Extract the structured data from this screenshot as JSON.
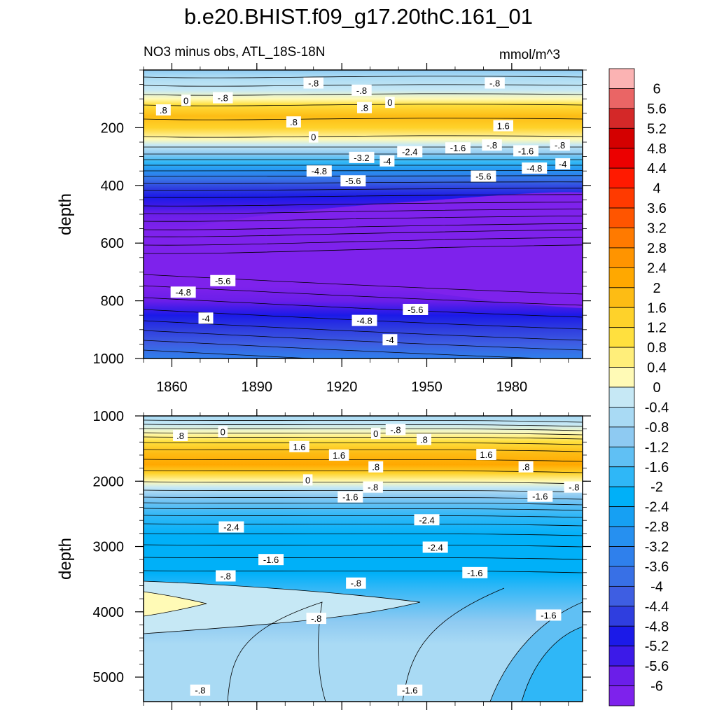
{
  "chart_data": {
    "type": "heatmap",
    "title": "b.e20.BHIST.f09_g17.20thC.161_01",
    "subtitle": "NO3 minus obs, ATL_18S-18N",
    "units": "mmol/m^3",
    "colorbar": {
      "levels": [
        "6",
        "5.6",
        "5.2",
        "4.8",
        "4.4",
        "4",
        "3.6",
        "3.2",
        "2.8",
        "2.4",
        "2",
        "1.6",
        "1.2",
        "0.8",
        "0.4",
        "0",
        "-0.4",
        "-0.8",
        "-1.2",
        "-1.6",
        "-2",
        "-2.4",
        "-2.8",
        "-3.2",
        "-3.6",
        "-4",
        "-4.4",
        "-4.8",
        "-5.2",
        "-5.6",
        "-6"
      ],
      "colors": [
        "#fbb3b3",
        "#ea6565",
        "#d42828",
        "#d40000",
        "#ec0000",
        "#ff1a00",
        "#ff3a00",
        "#ff5500",
        "#ff7a00",
        "#ff9400",
        "#ffa800",
        "#fdbc14",
        "#fed22a",
        "#ffe03e",
        "#ffee7a",
        "#fffab6",
        "#c6e8f5",
        "#a9daf4",
        "#8ecaf2",
        "#60c0f4",
        "#2fb7f7",
        "#00b0f8",
        "#16a0f3",
        "#2690f0",
        "#2f80ec",
        "#3870e6",
        "#3e5ee2",
        "#2f3edf",
        "#1b1ae8",
        "#3c1ae8",
        "#6b1ee9",
        "#7e22ec"
      ]
    },
    "x_ticks": [
      "1860",
      "1890",
      "1920",
      "1950",
      "1980"
    ],
    "x_range": [
      1850,
      2005
    ],
    "panels": [
      {
        "ylabel": "depth",
        "yticks": [
          "200",
          "400",
          "600",
          "800",
          "1000"
        ],
        "yrange": [
          0,
          1000
        ],
        "contour_labels": [
          {
            "text": ".8",
            "x": 1857,
            "y": 138
          },
          {
            "text": "0",
            "x": 1865,
            "y": 105
          },
          {
            "text": "-.8",
            "x": 1878,
            "y": 96
          },
          {
            "text": "-.8",
            "x": 1910,
            "y": 45
          },
          {
            "text": "-.8",
            "x": 1927,
            "y": 70
          },
          {
            "text": ".8",
            "x": 1928,
            "y": 130
          },
          {
            "text": "0",
            "x": 1937,
            "y": 112
          },
          {
            "text": "-.8",
            "x": 1974,
            "y": 45
          },
          {
            "text": ".8",
            "x": 1903,
            "y": 180
          },
          {
            "text": "0",
            "x": 1910,
            "y": 232
          },
          {
            "text": "1.6",
            "x": 1977,
            "y": 193
          },
          {
            "text": "-3.2",
            "x": 1927,
            "y": 303
          },
          {
            "text": "-4",
            "x": 1936,
            "y": 315
          },
          {
            "text": "-2.4",
            "x": 1944,
            "y": 283
          },
          {
            "text": "-1.6",
            "x": 1961,
            "y": 270
          },
          {
            "text": "-.8",
            "x": 1973,
            "y": 260
          },
          {
            "text": "-1.6",
            "x": 1985,
            "y": 280
          },
          {
            "text": "-.8",
            "x": 1997,
            "y": 260
          },
          {
            "text": "-4.8",
            "x": 1912,
            "y": 350
          },
          {
            "text": "-5.6",
            "x": 1924,
            "y": 384
          },
          {
            "text": "-5.6",
            "x": 1970,
            "y": 368
          },
          {
            "text": "-4.8",
            "x": 1988,
            "y": 340
          },
          {
            "text": "-4",
            "x": 1998,
            "y": 325
          },
          {
            "text": "-5.6",
            "x": 1878,
            "y": 730
          },
          {
            "text": "-4.8",
            "x": 1864,
            "y": 770
          },
          {
            "text": "-4",
            "x": 1872,
            "y": 860
          },
          {
            "text": "-5.6",
            "x": 1946,
            "y": 830
          },
          {
            "text": "-4.8",
            "x": 1928,
            "y": 868
          },
          {
            "text": "-4",
            "x": 1937,
            "y": 935
          }
        ]
      },
      {
        "ylabel": "depth",
        "yticks": [
          "1000",
          "2000",
          "3000",
          "4000",
          "5000"
        ],
        "yrange": [
          1000,
          5375
        ],
        "contour_labels": [
          {
            "text": ".8",
            "x": 1863,
            "y": 1300
          },
          {
            "text": "0",
            "x": 1878,
            "y": 1240
          },
          {
            "text": "1.6",
            "x": 1905,
            "y": 1470
          },
          {
            "text": "1.6",
            "x": 1919,
            "y": 1600
          },
          {
            "text": ".8",
            "x": 1932,
            "y": 1780
          },
          {
            "text": "0",
            "x": 1932,
            "y": 1270
          },
          {
            "text": "-.8",
            "x": 1939,
            "y": 1210
          },
          {
            "text": ".8",
            "x": 1949,
            "y": 1360
          },
          {
            "text": "1.6",
            "x": 1971,
            "y": 1590
          },
          {
            "text": ".8",
            "x": 1985,
            "y": 1780
          },
          {
            "text": "0",
            "x": 1908,
            "y": 1980
          },
          {
            "text": "-.8",
            "x": 1931,
            "y": 2090
          },
          {
            "text": "-1.6",
            "x": 1923,
            "y": 2240
          },
          {
            "text": "-1.6",
            "x": 1990,
            "y": 2230
          },
          {
            "text": "-.8",
            "x": 2002,
            "y": 2090
          },
          {
            "text": "-2.4",
            "x": 1881,
            "y": 2700
          },
          {
            "text": "-2.4",
            "x": 1950,
            "y": 2590
          },
          {
            "text": "-2.4",
            "x": 1953,
            "y": 3010
          },
          {
            "text": "-1.6",
            "x": 1895,
            "y": 3200
          },
          {
            "text": "-.8",
            "x": 1879,
            "y": 3450
          },
          {
            "text": "-.8",
            "x": 1925,
            "y": 3560
          },
          {
            "text": "-1.6",
            "x": 1967,
            "y": 3400
          },
          {
            "text": "-.8",
            "x": 1911,
            "y": 4100
          },
          {
            "text": "-1.6",
            "x": 1993,
            "y": 4050
          },
          {
            "text": "-.8",
            "x": 1870,
            "y": 5200
          },
          {
            "text": "-1.6",
            "x": 1944,
            "y": 5200
          }
        ]
      }
    ]
  }
}
